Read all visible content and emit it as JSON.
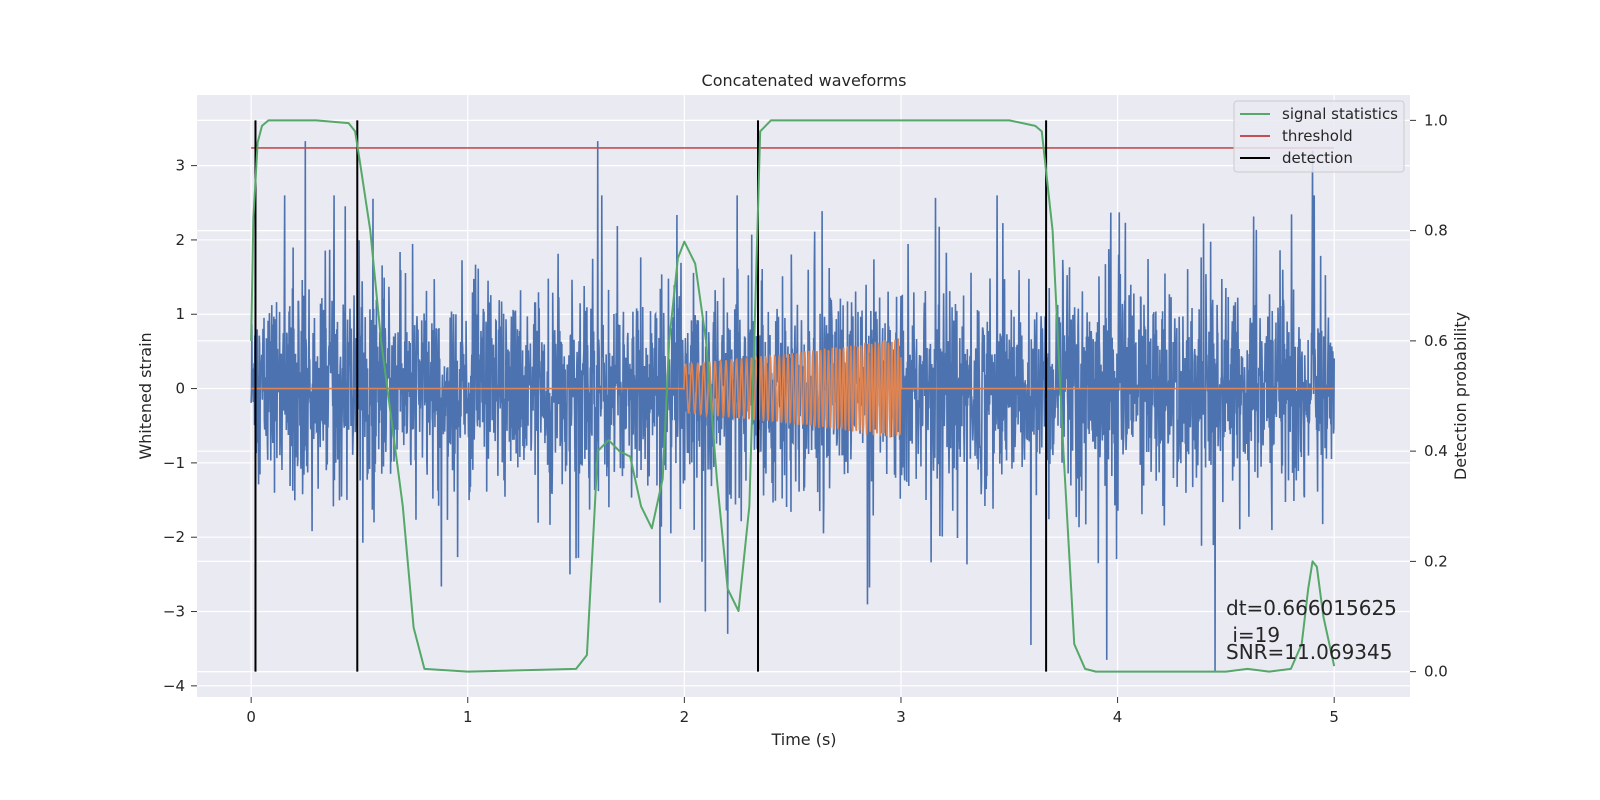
{
  "chart_data": {
    "type": "line",
    "title": "Concatenated waveforms",
    "xlabel": "Time (s)",
    "ylabel_left": "Whitened strain",
    "ylabel_right": "Detection probability",
    "xlim": [
      -0.25,
      5.35
    ],
    "ylim_left": [
      -4.15,
      3.95
    ],
    "ylim_right": [
      -0.046,
      1.046
    ],
    "x_ticks": [
      0,
      1,
      2,
      3,
      4,
      5
    ],
    "y_left_ticks": [
      -4,
      -3,
      -2,
      -1,
      0,
      1,
      2,
      3
    ],
    "y_right_ticks": [
      0.0,
      0.2,
      0.4,
      0.6,
      0.8,
      1.0
    ],
    "y_right_tick_labels": [
      "0.0",
      "0.2",
      "0.4",
      "0.6",
      "0.8",
      "1.0"
    ],
    "grid": true,
    "background": "#eaeaf2",
    "legend_position": "top-right",
    "legend": [
      {
        "label": "signal statistics",
        "color": "#55a868"
      },
      {
        "label": "threshold",
        "color": "#c44e52"
      },
      {
        "label": "detection",
        "color": "#000000"
      }
    ],
    "series": [
      {
        "role": "whitened-strain-noise",
        "color": "#4c72b0",
        "x_range": [
          0,
          5
        ],
        "typical_envelope": [
          -1.4,
          1.4
        ],
        "peak_values": [
          [
            0.25,
            3.33
          ],
          [
            1.6,
            3.33
          ],
          [
            2.2,
            -3.3
          ],
          [
            3.6,
            -3.45
          ],
          [
            3.95,
            -3.65
          ],
          [
            4.45,
            -3.8
          ],
          [
            4.9,
            3.2
          ]
        ]
      },
      {
        "role": "injected-waveform",
        "color": "#dd8452",
        "x": [
          0,
          2.0,
          2.5,
          3.0,
          3.0,
          5.0
        ],
        "amplitude": [
          0,
          0.33,
          0.48,
          0.68,
          0,
          0
        ]
      },
      {
        "name": "signal statistics",
        "color": "#55a868",
        "axis": "right",
        "x": [
          0,
          0.01,
          0.03,
          0.05,
          0.08,
          0.12,
          0.3,
          0.45,
          0.48,
          0.5,
          0.55,
          0.6,
          0.65,
          0.7,
          0.75,
          0.8,
          1.0,
          1.5,
          1.55,
          1.58,
          1.6,
          1.65,
          1.7,
          1.75,
          1.8,
          1.85,
          1.9,
          1.93,
          1.97,
          2.0,
          2.05,
          2.1,
          2.15,
          2.2,
          2.25,
          2.3,
          2.33,
          2.35,
          2.4,
          2.5,
          3.5,
          3.62,
          3.65,
          3.7,
          3.75,
          3.8,
          3.85,
          3.9,
          4.0,
          4.5,
          4.6,
          4.7,
          4.8,
          4.85,
          4.88,
          4.9,
          4.92,
          4.95,
          5.0
        ],
        "values": [
          0.6,
          0.82,
          0.96,
          0.99,
          1.0,
          1.0,
          1.0,
          0.995,
          0.98,
          0.93,
          0.8,
          0.6,
          0.45,
          0.3,
          0.08,
          0.005,
          0.0,
          0.005,
          0.03,
          0.25,
          0.4,
          0.42,
          0.4,
          0.39,
          0.3,
          0.26,
          0.35,
          0.6,
          0.75,
          0.78,
          0.74,
          0.6,
          0.35,
          0.15,
          0.11,
          0.3,
          0.7,
          0.98,
          1.0,
          1.0,
          1.0,
          0.99,
          0.98,
          0.8,
          0.4,
          0.05,
          0.005,
          0.0,
          0.0,
          0.0,
          0.005,
          0.0,
          0.005,
          0.05,
          0.15,
          0.2,
          0.19,
          0.1,
          0.01
        ]
      },
      {
        "name": "threshold",
        "color": "#c44e52",
        "axis": "right",
        "x": [
          0,
          5
        ],
        "values": [
          0.95,
          0.95
        ]
      }
    ],
    "detections": {
      "color": "#000000",
      "x": [
        0.02,
        0.49,
        2.34,
        3.67
      ],
      "ymin": 0.0,
      "ymax": 1.0
    },
    "annotations": [
      "dt=0.666015625",
      " i=19",
      "SNR=11.069345"
    ]
  }
}
